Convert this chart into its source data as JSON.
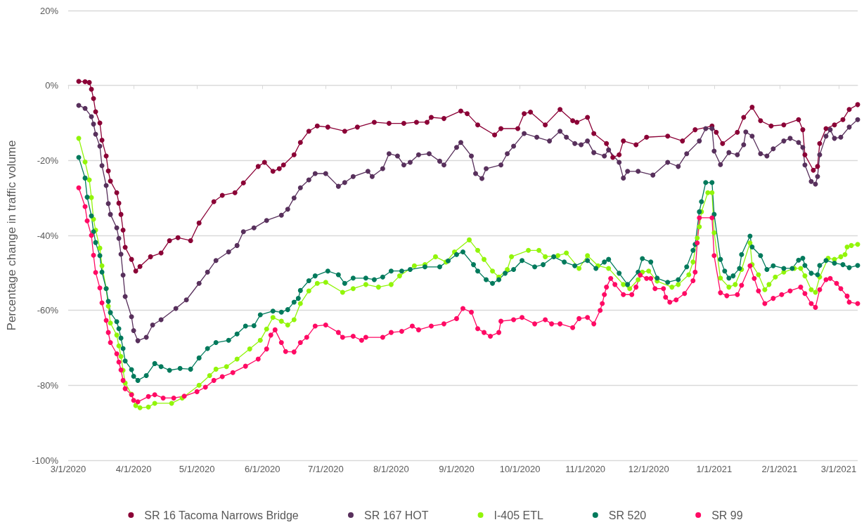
{
  "chart_data": {
    "type": "line",
    "ylabel": "Percentage change in traffic volume",
    "xlim": [
      "2020-03-01",
      "2021-03-10"
    ],
    "xticks": [
      {
        "value": "2020-03-01",
        "label": "3/1/2020"
      },
      {
        "value": "2020-04-01",
        "label": "4/1/2020"
      },
      {
        "value": "2020-05-01",
        "label": "5/1/2020"
      },
      {
        "value": "2020-06-01",
        "label": "6/1/2020"
      },
      {
        "value": "2020-07-01",
        "label": "7/1/2020"
      },
      {
        "value": "2020-08-01",
        "label": "8/1/2020"
      },
      {
        "value": "2020-09-01",
        "label": "9/1/2020"
      },
      {
        "value": "2020-10-01",
        "label": "10/1/2020"
      },
      {
        "value": "2020-11-01",
        "label": "11/1/2020"
      },
      {
        "value": "2020-12-01",
        "label": "12/1/2020"
      },
      {
        "value": "2021-01-01",
        "label": "1/1/2021"
      },
      {
        "value": "2021-02-01",
        "label": "2/1/2021"
      },
      {
        "value": "2021-03-01",
        "label": "3/1/2021"
      }
    ],
    "ylim": [
      -100,
      20
    ],
    "yticks": [
      {
        "value": -100,
        "label": "-100%"
      },
      {
        "value": -80,
        "label": "-80%"
      },
      {
        "value": -60,
        "label": "-60%"
      },
      {
        "value": -40,
        "label": "-40%"
      },
      {
        "value": -20,
        "label": "-20%"
      },
      {
        "value": 0,
        "label": "0%"
      },
      {
        "value": 20,
        "label": "20%"
      }
    ],
    "grid": "y",
    "legend": "bottom",
    "marker": "circle",
    "line_style": "solid",
    "series": [
      {
        "name": "SR 16 Tacoma Narrows Bridge",
        "color": "#8b0036",
        "x": [
          "2020-03-06",
          "2020-03-09",
          "2020-03-11",
          "2020-03-12",
          "2020-03-13",
          "2020-03-14",
          "2020-03-16",
          "2020-03-17",
          "2020-03-19",
          "2020-03-20",
          "2020-03-21",
          "2020-03-24",
          "2020-03-25",
          "2020-03-26",
          "2020-03-27",
          "2020-03-28",
          "2020-03-31",
          "2020-04-02",
          "2020-04-04",
          "2020-04-09",
          "2020-04-14",
          "2020-04-18",
          "2020-04-22",
          "2020-04-28",
          "2020-05-02",
          "2020-05-09",
          "2020-05-13",
          "2020-05-19",
          "2020-05-23",
          "2020-05-30",
          "2020-06-02",
          "2020-06-06",
          "2020-06-09",
          "2020-06-11",
          "2020-06-16",
          "2020-06-19",
          "2020-06-23",
          "2020-06-27",
          "2020-07-02",
          "2020-07-10",
          "2020-07-16",
          "2020-07-24",
          "2020-07-31",
          "2020-08-07",
          "2020-08-13",
          "2020-08-18",
          "2020-08-20",
          "2020-08-26",
          "2020-09-03",
          "2020-09-06",
          "2020-09-11",
          "2020-09-19",
          "2020-09-22",
          "2020-09-30",
          "2020-10-03",
          "2020-10-06",
          "2020-10-13",
          "2020-10-20",
          "2020-10-26",
          "2020-10-28",
          "2020-11-02",
          "2020-11-05",
          "2020-11-11",
          "2020-11-14",
          "2020-11-17",
          "2020-11-19",
          "2020-11-25",
          "2020-11-30",
          "2020-12-10",
          "2020-12-17",
          "2020-12-23",
          "2020-12-31",
          "2021-01-02",
          "2021-01-05",
          "2021-01-12",
          "2021-01-15",
          "2021-01-19",
          "2021-01-23",
          "2021-01-28",
          "2021-02-03",
          "2021-02-10",
          "2021-02-12",
          "2021-02-13",
          "2021-02-17",
          "2021-02-19",
          "2021-02-20",
          "2021-02-23",
          "2021-02-27",
          "2021-03-03",
          "2021-03-06",
          "2021-03-10"
        ],
        "values": [
          1.1,
          1,
          0.8,
          -1,
          -3.5,
          -7,
          -10,
          -14.6,
          -18.8,
          -22.8,
          -25.5,
          -28.6,
          -31.4,
          -34.4,
          -38.6,
          -43.2,
          -46.4,
          -49.5,
          -48.3,
          -45.7,
          -44.7,
          -41.4,
          -40.6,
          -41.4,
          -36.7,
          -31,
          -29.3,
          -28.6,
          -26,
          -21.6,
          -20.5,
          -22.9,
          -22.2,
          -21.2,
          -18.5,
          -15.2,
          -12.2,
          -10.8,
          -11.1,
          -12.2,
          -11.1,
          -9.8,
          -10.1,
          -10.1,
          -9.8,
          -9.8,
          -8.5,
          -8.8,
          -6.8,
          -7.5,
          -10.5,
          -13.2,
          -11.5,
          -11.5,
          -7.5,
          -7.1,
          -10.5,
          -6.4,
          -9.4,
          -9.8,
          -8.5,
          -12.8,
          -15.5,
          -19.2,
          -18.5,
          -14.8,
          -15.8,
          -13.8,
          -13.5,
          -14.8,
          -11.8,
          -10.8,
          -12.5,
          -15.5,
          -12.5,
          -8.5,
          -5.8,
          -9.4,
          -10.8,
          -10.5,
          -9.1,
          -11.8,
          -18.5,
          -22.6,
          -21.6,
          -15.5,
          -11.5,
          -10.5,
          -9.1,
          -6.4,
          -5.1
        ]
      },
      {
        "name": "SR 167 HOT",
        "color": "#58305c",
        "x": [
          "2020-03-06",
          "2020-03-09",
          "2020-03-12",
          "2020-03-13",
          "2020-03-14",
          "2020-03-16",
          "2020-03-17",
          "2020-03-19",
          "2020-03-20",
          "2020-03-21",
          "2020-03-24",
          "2020-03-25",
          "2020-03-26",
          "2020-03-27",
          "2020-03-28",
          "2020-03-31",
          "2020-04-01",
          "2020-04-03",
          "2020-04-07",
          "2020-04-10",
          "2020-04-14",
          "2020-04-21",
          "2020-04-26",
          "2020-05-02",
          "2020-05-06",
          "2020-05-10",
          "2020-05-16",
          "2020-05-20",
          "2020-05-23",
          "2020-05-28",
          "2020-06-03",
          "2020-06-10",
          "2020-06-13",
          "2020-06-16",
          "2020-06-19",
          "2020-06-23",
          "2020-06-26",
          "2020-07-01",
          "2020-07-07",
          "2020-07-10",
          "2020-07-14",
          "2020-07-21",
          "2020-07-23",
          "2020-07-28",
          "2020-07-31",
          "2020-08-04",
          "2020-08-07",
          "2020-08-10",
          "2020-08-14",
          "2020-08-19",
          "2020-08-24",
          "2020-08-26",
          "2020-09-01",
          "2020-09-03",
          "2020-09-08",
          "2020-09-10",
          "2020-09-13",
          "2020-09-15",
          "2020-09-22",
          "2020-09-25",
          "2020-09-28",
          "2020-10-03",
          "2020-10-09",
          "2020-10-15",
          "2020-10-20",
          "2020-10-23",
          "2020-10-27",
          "2020-10-30",
          "2020-11-02",
          "2020-11-05",
          "2020-11-10",
          "2020-11-12",
          "2020-11-17",
          "2020-11-19",
          "2020-11-21",
          "2020-11-26",
          "2020-12-03",
          "2020-12-10",
          "2020-12-15",
          "2020-12-19",
          "2020-12-25",
          "2020-12-28",
          "2020-12-31",
          "2021-01-01",
          "2021-01-04",
          "2021-01-08",
          "2021-01-12",
          "2021-01-15",
          "2021-01-16",
          "2021-01-19",
          "2021-01-23",
          "2021-01-26",
          "2021-01-29",
          "2021-02-03",
          "2021-02-06",
          "2021-02-10",
          "2021-02-12",
          "2021-02-13",
          "2021-02-16",
          "2021-02-18",
          "2021-02-19",
          "2021-02-20",
          "2021-02-23",
          "2021-02-25",
          "2021-02-27",
          "2021-03-02",
          "2021-03-06",
          "2021-03-10"
        ],
        "values": [
          -5.3,
          -6.1,
          -8.3,
          -10.3,
          -13,
          -16.2,
          -21.4,
          -26.7,
          -31.5,
          -34.4,
          -38,
          -40.8,
          -45,
          -50.6,
          -56.3,
          -61.7,
          -65.4,
          -68.1,
          -67.2,
          -63.9,
          -62.5,
          -59.5,
          -57.2,
          -52.8,
          -49.8,
          -46.7,
          -44.4,
          -42.7,
          -39,
          -38,
          -36,
          -34.6,
          -33,
          -30,
          -27.3,
          -25.2,
          -23.5,
          -23.5,
          -26.9,
          -25.9,
          -24.3,
          -22.9,
          -24.3,
          -22.2,
          -18.2,
          -18.8,
          -21.2,
          -20.5,
          -18.5,
          -18.2,
          -20.2,
          -21.2,
          -16.5,
          -15.2,
          -18.8,
          -23.5,
          -24.8,
          -22.2,
          -21.2,
          -18.2,
          -16.2,
          -12.8,
          -13.8,
          -14.8,
          -12.2,
          -13.8,
          -15.5,
          -15.8,
          -14.8,
          -17.9,
          -18.8,
          -17.2,
          -20.5,
          -24.7,
          -22.9,
          -22.9,
          -23.9,
          -20.5,
          -21.6,
          -18.2,
          -14.8,
          -11.5,
          -11.5,
          -17.5,
          -21.1,
          -17.9,
          -18.5,
          -15.8,
          -12.4,
          -13.5,
          -18.2,
          -18.8,
          -16.9,
          -14.8,
          -14.1,
          -15.2,
          -16.5,
          -21.2,
          -25.6,
          -26.3,
          -24.3,
          -18.5,
          -13.5,
          -11.8,
          -14.1,
          -13.8,
          -11.1,
          -9.1
        ]
      },
      {
        "name": "I-405 ETL",
        "color": "#92f50a",
        "x": [
          "2020-03-06",
          "2020-03-09",
          "2020-03-11",
          "2020-03-12",
          "2020-03-13",
          "2020-03-14",
          "2020-03-16",
          "2020-03-17",
          "2020-03-19",
          "2020-03-20",
          "2020-03-21",
          "2020-03-24",
          "2020-03-25",
          "2020-03-26",
          "2020-03-27",
          "2020-03-28",
          "2020-03-31",
          "2020-04-02",
          "2020-04-04",
          "2020-04-08",
          "2020-04-11",
          "2020-04-19",
          "2020-04-24",
          "2020-05-02",
          "2020-05-07",
          "2020-05-10",
          "2020-05-15",
          "2020-05-20",
          "2020-05-26",
          "2020-05-31",
          "2020-06-03",
          "2020-06-06",
          "2020-06-10",
          "2020-06-13",
          "2020-06-16",
          "2020-06-19",
          "2020-06-23",
          "2020-06-27",
          "2020-07-01",
          "2020-07-09",
          "2020-07-14",
          "2020-07-20",
          "2020-07-26",
          "2020-08-01",
          "2020-08-05",
          "2020-08-12",
          "2020-08-17",
          "2020-08-22",
          "2020-08-27",
          "2020-08-31",
          "2020-09-07",
          "2020-09-11",
          "2020-09-14",
          "2020-09-18",
          "2020-09-21",
          "2020-09-25",
          "2020-09-27",
          "2020-10-05",
          "2020-10-10",
          "2020-10-13",
          "2020-10-19",
          "2020-10-23",
          "2020-10-29",
          "2020-11-02",
          "2020-11-07",
          "2020-11-12",
          "2020-11-19",
          "2020-11-22",
          "2020-11-26",
          "2020-11-28",
          "2020-12-01",
          "2020-12-05",
          "2020-12-12",
          "2020-12-15",
          "2020-12-20",
          "2020-12-22",
          "2020-12-24",
          "2020-12-25",
          "2020-12-26",
          "2020-12-29",
          "2020-12-31",
          "2021-01-01",
          "2021-01-04",
          "2021-01-08",
          "2021-01-11",
          "2021-01-14",
          "2021-01-18",
          "2021-01-19",
          "2021-01-22",
          "2021-01-25",
          "2021-01-27",
          "2021-01-30",
          "2021-02-03",
          "2021-02-08",
          "2021-02-11",
          "2021-02-13",
          "2021-02-16",
          "2021-02-18",
          "2021-02-20",
          "2021-02-24",
          "2021-02-27",
          "2021-03-02",
          "2021-03-04",
          "2021-03-05",
          "2021-03-07",
          "2021-03-10"
        ],
        "values": [
          -14.1,
          -20.4,
          -25.2,
          -29.9,
          -35.7,
          -38.6,
          -43.4,
          -48.1,
          -54.2,
          -58.9,
          -63.4,
          -66.6,
          -69.5,
          -72.3,
          -76,
          -79.4,
          -82.4,
          -85.4,
          -86,
          -85.8,
          -84.8,
          -84.8,
          -83.4,
          -80,
          -77.4,
          -75.7,
          -75,
          -73,
          -70.3,
          -68,
          -65,
          -61.9,
          -62.9,
          -63.9,
          -62.5,
          -58.2,
          -54.8,
          -52.8,
          -52.5,
          -55.2,
          -54.2,
          -53.1,
          -53.8,
          -53.1,
          -50.8,
          -48.1,
          -47.8,
          -45.7,
          -47.1,
          -44.4,
          -41.2,
          -44,
          -46.4,
          -49.5,
          -51.1,
          -49.1,
          -45.7,
          -44,
          -44,
          -45.7,
          -45.4,
          -44.7,
          -48.8,
          -45.4,
          -48.1,
          -48.8,
          -53.1,
          -54.2,
          -51.8,
          -49.8,
          -49.5,
          -52.2,
          -53.8,
          -53.1,
          -50.5,
          -47.1,
          -40.7,
          -37.7,
          -33.7,
          -28.6,
          -28.6,
          -39.3,
          -51.4,
          -53.8,
          -53.1,
          -49.1,
          -42,
          -47.8,
          -50.5,
          -54.5,
          -53.1,
          -51.1,
          -49.8,
          -48.8,
          -48.8,
          -50.8,
          -54.5,
          -55.2,
          -51.1,
          -46.1,
          -46.4,
          -45.7,
          -45.1,
          -43.1,
          -42.7,
          -42.4
        ]
      },
      {
        "name": "SR 520",
        "color": "#007a5c",
        "x": [
          "2020-03-06",
          "2020-03-09",
          "2020-03-10",
          "2020-03-12",
          "2020-03-13",
          "2020-03-14",
          "2020-03-16",
          "2020-03-17",
          "2020-03-19",
          "2020-03-20",
          "2020-03-21",
          "2020-03-24",
          "2020-03-25",
          "2020-03-26",
          "2020-03-27",
          "2020-03-28",
          "2020-03-31",
          "2020-04-01",
          "2020-04-03",
          "2020-04-07",
          "2020-04-11",
          "2020-04-14",
          "2020-04-18",
          "2020-04-23",
          "2020-04-28",
          "2020-05-02",
          "2020-05-06",
          "2020-05-10",
          "2020-05-16",
          "2020-05-20",
          "2020-05-24",
          "2020-05-28",
          "2020-05-31",
          "2020-06-06",
          "2020-06-10",
          "2020-06-13",
          "2020-06-16",
          "2020-06-18",
          "2020-06-19",
          "2020-06-23",
          "2020-06-26",
          "2020-07-02",
          "2020-07-07",
          "2020-07-10",
          "2020-07-14",
          "2020-07-20",
          "2020-07-24",
          "2020-07-28",
          "2020-08-01",
          "2020-08-06",
          "2020-08-10",
          "2020-08-17",
          "2020-08-24",
          "2020-08-28",
          "2020-09-01",
          "2020-09-04",
          "2020-09-09",
          "2020-09-11",
          "2020-09-15",
          "2020-09-18",
          "2020-09-21",
          "2020-09-24",
          "2020-09-28",
          "2020-10-02",
          "2020-10-08",
          "2020-10-12",
          "2020-10-17",
          "2020-10-22",
          "2020-10-27",
          "2020-11-02",
          "2020-11-06",
          "2020-11-10",
          "2020-11-12",
          "2020-11-17",
          "2020-11-21",
          "2020-11-26",
          "2020-11-28",
          "2020-12-02",
          "2020-12-05",
          "2020-12-10",
          "2020-12-15",
          "2020-12-19",
          "2020-12-22",
          "2020-12-23",
          "2020-12-25",
          "2020-12-26",
          "2020-12-28",
          "2020-12-31",
          "2021-01-01",
          "2021-01-04",
          "2021-01-06",
          "2021-01-08",
          "2021-01-10",
          "2021-01-13",
          "2021-01-14",
          "2021-01-18",
          "2021-01-19",
          "2021-01-23",
          "2021-01-26",
          "2021-01-29",
          "2021-02-03",
          "2021-02-07",
          "2021-02-10",
          "2021-02-12",
          "2021-02-13",
          "2021-02-16",
          "2021-02-19",
          "2021-02-20",
          "2021-02-23",
          "2021-02-27",
          "2021-03-03",
          "2021-03-06",
          "2021-03-10"
        ],
        "values": [
          -19.2,
          -24.7,
          -29.8,
          -34.8,
          -39,
          -41.9,
          -45.4,
          -49.8,
          -54.2,
          -57.6,
          -60.6,
          -63,
          -64.9,
          -67.4,
          -70.2,
          -73.5,
          -75.8,
          -77.6,
          -78.7,
          -77.4,
          -74.2,
          -75,
          -76,
          -75.5,
          -75.7,
          -72.7,
          -70.2,
          -68.6,
          -68,
          -66.3,
          -64.2,
          -64.1,
          -61.2,
          -60.2,
          -60.5,
          -59.8,
          -57.8,
          -56.8,
          -54.7,
          -52.1,
          -50.8,
          -49.5,
          -50.5,
          -52.8,
          -51.4,
          -51.4,
          -51.8,
          -51.1,
          -49.5,
          -49.5,
          -49.1,
          -48.4,
          -48.4,
          -46.8,
          -45.1,
          -44.4,
          -47.8,
          -49.5,
          -51.8,
          -52.8,
          -51.8,
          -50.1,
          -49.1,
          -46.7,
          -48.4,
          -47.8,
          -45.7,
          -47.1,
          -48.1,
          -46.7,
          -48.8,
          -47.1,
          -46.4,
          -50.1,
          -53.1,
          -49.8,
          -46.2,
          -47.1,
          -51.4,
          -52.5,
          -51.8,
          -48.4,
          -44,
          -42.4,
          -33.7,
          -31,
          -25.9,
          -25.9,
          -34.4,
          -46.4,
          -49.5,
          -51.4,
          -50.8,
          -48.8,
          -45.1,
          -40.2,
          -43.1,
          -45.4,
          -49.1,
          -48.1,
          -48.8,
          -48.8,
          -46.6,
          -46.1,
          -48,
          -50.1,
          -50.5,
          -48,
          -46.7,
          -47.4,
          -47.8,
          -48.6,
          -48
        ]
      },
      {
        "name": "SR 99",
        "color": "#ff0a64",
        "x": [
          "2020-03-06",
          "2020-03-09",
          "2020-03-10",
          "2020-03-12",
          "2020-03-13",
          "2020-03-14",
          "2020-03-16",
          "2020-03-17",
          "2020-03-19",
          "2020-03-20",
          "2020-03-21",
          "2020-03-24",
          "2020-03-25",
          "2020-03-26",
          "2020-03-27",
          "2020-03-28",
          "2020-03-31",
          "2020-04-01",
          "2020-04-03",
          "2020-04-08",
          "2020-04-11",
          "2020-04-15",
          "2020-04-20",
          "2020-04-25",
          "2020-05-01",
          "2020-05-05",
          "2020-05-09",
          "2020-05-13",
          "2020-05-18",
          "2020-05-24",
          "2020-05-30",
          "2020-06-03",
          "2020-06-05",
          "2020-06-07",
          "2020-06-10",
          "2020-06-12",
          "2020-06-16",
          "2020-06-19",
          "2020-06-22",
          "2020-06-26",
          "2020-07-01",
          "2020-07-07",
          "2020-07-09",
          "2020-07-14",
          "2020-07-18",
          "2020-07-20",
          "2020-07-28",
          "2020-08-01",
          "2020-08-06",
          "2020-08-11",
          "2020-08-14",
          "2020-08-20",
          "2020-08-26",
          "2020-09-01",
          "2020-09-04",
          "2020-09-08",
          "2020-09-11",
          "2020-09-14",
          "2020-09-17",
          "2020-09-21",
          "2020-09-22",
          "2020-09-28",
          "2020-10-02",
          "2020-10-08",
          "2020-10-13",
          "2020-10-16",
          "2020-10-20",
          "2020-10-26",
          "2020-10-29",
          "2020-11-02",
          "2020-11-05",
          "2020-11-08",
          "2020-11-09",
          "2020-11-10",
          "2020-11-11",
          "2020-11-13",
          "2020-11-15",
          "2020-11-19",
          "2020-11-23",
          "2020-11-25",
          "2020-11-27",
          "2020-11-30",
          "2020-12-02",
          "2020-12-04",
          "2020-12-08",
          "2020-12-09",
          "2020-12-11",
          "2020-12-14",
          "2020-12-18",
          "2020-12-22",
          "2020-12-23",
          "2020-12-24",
          "2020-12-25",
          "2020-12-31",
          "2021-01-01",
          "2021-01-04",
          "2021-01-07",
          "2021-01-12",
          "2021-01-14",
          "2021-01-18",
          "2021-01-20",
          "2021-01-22",
          "2021-01-25",
          "2021-01-29",
          "2021-02-02",
          "2021-02-06",
          "2021-02-11",
          "2021-02-13",
          "2021-02-16",
          "2021-02-18",
          "2021-02-20",
          "2021-02-23",
          "2021-02-25",
          "2021-02-28",
          "2021-03-02",
          "2021-03-05",
          "2021-03-06",
          "2021-03-10"
        ],
        "values": [
          -27.3,
          -32.3,
          -36.1,
          -40,
          -45.3,
          -49.9,
          -54,
          -58,
          -62.7,
          -65.9,
          -68.6,
          -71.6,
          -73.8,
          -75.9,
          -78.7,
          -80.9,
          -82.5,
          -84,
          -84.4,
          -83,
          -82.5,
          -83.4,
          -83.4,
          -82.9,
          -81.7,
          -80.5,
          -78.7,
          -77.7,
          -76.6,
          -74.9,
          -73,
          -70.3,
          -66.6,
          -65.2,
          -68.6,
          -71,
          -71.1,
          -68.6,
          -67.2,
          -64.2,
          -63.9,
          -65.9,
          -67.2,
          -66.9,
          -68,
          -67.2,
          -67.2,
          -65.9,
          -65.6,
          -64.2,
          -65.2,
          -64.2,
          -63.6,
          -62.2,
          -59.5,
          -60.5,
          -64.9,
          -65.9,
          -66.9,
          -65.9,
          -62.9,
          -62.5,
          -61.9,
          -63.6,
          -62.5,
          -63.6,
          -63.6,
          -64.6,
          -62.2,
          -61.9,
          -63.6,
          -60,
          -58.2,
          -55.8,
          -53.8,
          -51.5,
          -53.1,
          -55.8,
          -55.8,
          -53.8,
          -50.6,
          -51.5,
          -51.5,
          -54.2,
          -54.2,
          -56.5,
          -57.8,
          -57.2,
          -55.5,
          -52.1,
          -49.8,
          -42,
          -35.3,
          -35.3,
          -45.4,
          -55.3,
          -56.1,
          -55.8,
          -53.3,
          -48.1,
          -51.5,
          -54.8,
          -58.2,
          -56.8,
          -55.8,
          -54.8,
          -53.8,
          -55.5,
          -58.2,
          -59.2,
          -54.5,
          -51.8,
          -51.5,
          -52.8,
          -54.2,
          -56.2,
          -57.8,
          -58.2
        ]
      }
    ]
  }
}
